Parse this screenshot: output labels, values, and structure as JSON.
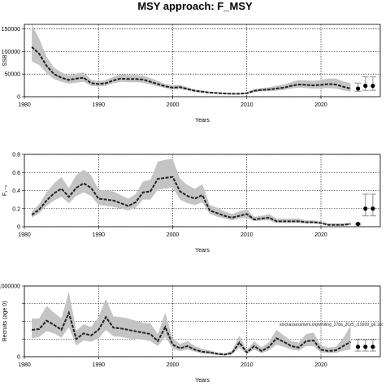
{
  "title": "MSY approach: F_MSY",
  "annotation": "stockassessment.org/whiting_278a_2025_r19209_g6.1cc",
  "colors": {
    "band": "#c4c4c4",
    "line": "#222222",
    "grid": "#000000",
    "errorbar": "#a0a0a0"
  },
  "chart_data": [
    {
      "type": "line",
      "xlabel": "Years",
      "ylabel": "SSB",
      "xlim": [
        1980,
        2028
      ],
      "ylim": [
        0,
        160000
      ],
      "xticks": [
        1980,
        1990,
        2000,
        2010,
        2020
      ],
      "yticks": [
        0,
        50000,
        100000,
        150000
      ],
      "grid": true,
      "years": [
        1981,
        1982,
        1983,
        1984,
        1985,
        1986,
        1987,
        1988,
        1989,
        1990,
        1991,
        1992,
        1993,
        1994,
        1995,
        1996,
        1997,
        1998,
        1999,
        2000,
        2001,
        2002,
        2003,
        2004,
        2005,
        2006,
        2007,
        2008,
        2009,
        2010,
        2011,
        2012,
        2013,
        2014,
        2015,
        2016,
        2017,
        2018,
        2019,
        2020,
        2021,
        2022,
        2023,
        2024
      ],
      "estimate": [
        110000,
        95000,
        68000,
        50000,
        42000,
        37000,
        40000,
        42000,
        30000,
        28000,
        30000,
        36000,
        40000,
        39000,
        39000,
        38000,
        33000,
        28000,
        23000,
        20000,
        21000,
        17000,
        13000,
        11000,
        9000,
        8000,
        7000,
        6500,
        6500,
        7500,
        13000,
        15000,
        16000,
        18000,
        20000,
        24000,
        27000,
        26000,
        25000,
        26000,
        28000,
        27000,
        22000,
        18000
      ],
      "lower": [
        78000,
        70000,
        52000,
        39000,
        33000,
        29000,
        31000,
        33000,
        24000,
        23000,
        24000,
        30000,
        33000,
        32000,
        32000,
        31000,
        27000,
        23000,
        19000,
        16000,
        17000,
        14000,
        10500,
        9000,
        7500,
        6500,
        5700,
        5200,
        5200,
        6000,
        10000,
        12000,
        12000,
        13500,
        15000,
        18000,
        20000,
        19000,
        18000,
        18000,
        19000,
        18000,
        14000,
        11000
      ],
      "upper": [
        160000,
        128000,
        88000,
        64000,
        54000,
        47000,
        51000,
        54000,
        38000,
        34000,
        37000,
        44000,
        50000,
        48000,
        48000,
        47000,
        41000,
        35000,
        28000,
        25000,
        26000,
        21000,
        16000,
        14000,
        11000,
        10000,
        8600,
        8000,
        8000,
        9500,
        17000,
        19000,
        21000,
        24000,
        27000,
        32000,
        37000,
        36000,
        35000,
        37000,
        40000,
        40000,
        34000,
        30000
      ],
      "forecast": [
        {
          "year": 2025,
          "value": 18000,
          "low": 12000,
          "high": 30000
        },
        {
          "year": 2026,
          "value": 24000,
          "low": 14000,
          "high": 44000
        },
        {
          "year": 2027,
          "value": 24000,
          "low": 14000,
          "high": 44000
        }
      ]
    },
    {
      "type": "line",
      "xlabel": "Years",
      "ylabel": "F₁₋₃",
      "xlim": [
        1980,
        2028
      ],
      "ylim": [
        0,
        0.8
      ],
      "xticks": [
        1980,
        1990,
        2000,
        2010,
        2020
      ],
      "yticks": [
        0.0,
        0.2,
        0.4,
        0.6,
        0.8
      ],
      "grid": true,
      "years": [
        1981,
        1982,
        1983,
        1984,
        1985,
        1986,
        1987,
        1988,
        1989,
        1990,
        1991,
        1992,
        1993,
        1994,
        1995,
        1996,
        1997,
        1998,
        1999,
        2000,
        2001,
        2002,
        2003,
        2004,
        2005,
        2006,
        2007,
        2008,
        2009,
        2010,
        2011,
        2012,
        2013,
        2014,
        2015,
        2016,
        2017,
        2018,
        2019,
        2020,
        2021,
        2022,
        2023,
        2024
      ],
      "estimate": [
        0.13,
        0.19,
        0.29,
        0.37,
        0.42,
        0.33,
        0.43,
        0.48,
        0.43,
        0.31,
        0.3,
        0.29,
        0.26,
        0.23,
        0.27,
        0.38,
        0.39,
        0.53,
        0.54,
        0.55,
        0.39,
        0.34,
        0.31,
        0.35,
        0.18,
        0.15,
        0.12,
        0.1,
        0.12,
        0.14,
        0.08,
        0.09,
        0.1,
        0.06,
        0.06,
        0.06,
        0.06,
        0.05,
        0.05,
        0.04,
        0.02,
        0.02,
        0.02,
        0.03
      ],
      "lower": [
        0.1,
        0.15,
        0.23,
        0.29,
        0.33,
        0.26,
        0.34,
        0.38,
        0.34,
        0.24,
        0.23,
        0.22,
        0.2,
        0.18,
        0.21,
        0.3,
        0.3,
        0.41,
        0.42,
        0.43,
        0.3,
        0.26,
        0.24,
        0.27,
        0.14,
        0.11,
        0.09,
        0.07,
        0.09,
        0.1,
        0.06,
        0.07,
        0.07,
        0.04,
        0.04,
        0.04,
        0.04,
        0.035,
        0.035,
        0.03,
        0.015,
        0.015,
        0.015,
        0.02
      ],
      "upper": [
        0.17,
        0.25,
        0.38,
        0.48,
        0.55,
        0.43,
        0.57,
        0.63,
        0.57,
        0.41,
        0.4,
        0.39,
        0.35,
        0.31,
        0.36,
        0.5,
        0.52,
        0.72,
        0.74,
        0.75,
        0.53,
        0.46,
        0.42,
        0.47,
        0.24,
        0.21,
        0.17,
        0.14,
        0.17,
        0.19,
        0.11,
        0.12,
        0.14,
        0.09,
        0.09,
        0.09,
        0.09,
        0.07,
        0.07,
        0.06,
        0.035,
        0.035,
        0.035,
        0.045
      ],
      "forecast": [
        {
          "year": 2025,
          "value": 0.03,
          "low": 0.02,
          "high": 0.04
        },
        {
          "year": 2026,
          "value": 0.2,
          "low": 0.12,
          "high": 0.36
        },
        {
          "year": 2027,
          "value": 0.2,
          "low": 0.12,
          "high": 0.36
        }
      ]
    },
    {
      "type": "line",
      "xlabel": "Years",
      "ylabel": "Recruits (age 0)",
      "xlim": [
        1980,
        2028
      ],
      "ylim": [
        0,
        1000000
      ],
      "xticks": [
        1980,
        1990,
        2000,
        2010,
        2020
      ],
      "yticks": [
        0,
        250000,
        500000,
        750000,
        1000000
      ],
      "ytick_labels": [
        "0",
        "",
        "",
        "",
        "1000000"
      ],
      "grid": true,
      "years": [
        1981,
        1982,
        1983,
        1984,
        1985,
        1986,
        1987,
        1988,
        1989,
        1990,
        1991,
        1992,
        1993,
        1994,
        1995,
        1996,
        1997,
        1998,
        1999,
        2000,
        2001,
        2002,
        2003,
        2004,
        2005,
        2006,
        2007,
        2008,
        2009,
        2010,
        2011,
        2012,
        2013,
        2014,
        2015,
        2016,
        2017,
        2018,
        2019,
        2020,
        2021,
        2022,
        2023,
        2024
      ],
      "estimate": [
        380000,
        390000,
        510000,
        450000,
        380000,
        620000,
        250000,
        330000,
        300000,
        380000,
        560000,
        410000,
        400000,
        380000,
        360000,
        340000,
        320000,
        220000,
        420000,
        170000,
        120000,
        150000,
        100000,
        70000,
        60000,
        40000,
        30000,
        50000,
        200000,
        60000,
        150000,
        80000,
        140000,
        260000,
        210000,
        150000,
        130000,
        220000,
        230000,
        100000,
        80000,
        90000,
        150000,
        210000
      ],
      "lower": [
        260000,
        280000,
        360000,
        330000,
        270000,
        420000,
        160000,
        230000,
        210000,
        260000,
        380000,
        290000,
        280000,
        260000,
        250000,
        240000,
        220000,
        150000,
        280000,
        110000,
        80000,
        100000,
        70000,
        45000,
        40000,
        26000,
        18000,
        32000,
        130000,
        38000,
        100000,
        50000,
        90000,
        170000,
        140000,
        100000,
        85000,
        150000,
        150000,
        60000,
        50000,
        55000,
        80000,
        100000
      ],
      "upper": [
        540000,
        540000,
        720000,
        620000,
        540000,
        920000,
        370000,
        460000,
        420000,
        560000,
        820000,
        570000,
        560000,
        540000,
        510000,
        480000,
        470000,
        320000,
        620000,
        260000,
        180000,
        220000,
        150000,
        110000,
        90000,
        60000,
        50000,
        80000,
        300000,
        95000,
        220000,
        130000,
        210000,
        380000,
        300000,
        220000,
        200000,
        320000,
        340000,
        160000,
        130000,
        140000,
        260000,
        440000
      ],
      "forecast": [
        {
          "year": 2025,
          "value": 140000,
          "low": 80000,
          "high": 240000
        },
        {
          "year": 2026,
          "value": 140000,
          "low": 80000,
          "high": 240000
        },
        {
          "year": 2027,
          "value": 140000,
          "low": 80000,
          "high": 240000
        }
      ]
    }
  ]
}
